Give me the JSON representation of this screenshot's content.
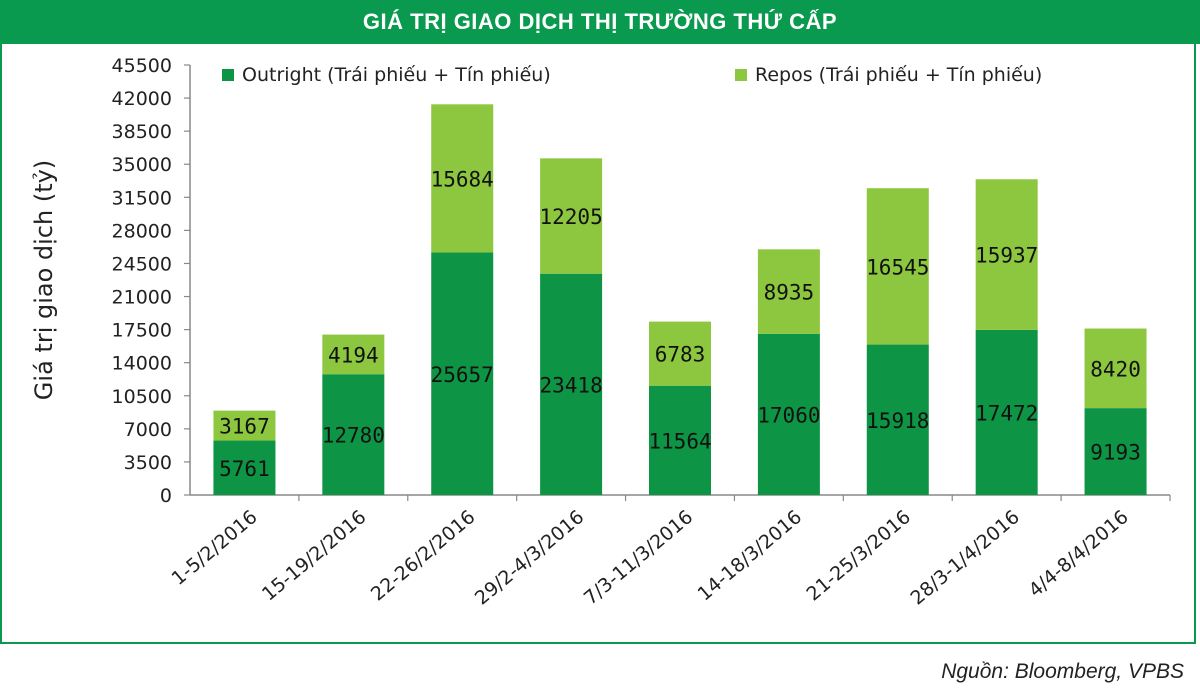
{
  "header": {
    "title": "GIÁ TRỊ GIAO DỊCH THỊ TRƯỜNG THỨ CẤP"
  },
  "footer": {
    "source": "Nguồn: Bloomberg, VPBS"
  },
  "colors": {
    "header_bg": "#0a9a4f",
    "outright": "#0d9444",
    "repos": "#8dc63f"
  },
  "chart_data": {
    "type": "bar",
    "stacked": true,
    "title": "GIÁ TRỊ GIAO DỊCH THỊ TRƯỜNG THỨ CẤP",
    "xlabel": "",
    "ylabel": "Giá trị giao dịch (tỷ)",
    "ylim": [
      0,
      45500
    ],
    "yticks": [
      0,
      3500,
      7000,
      10500,
      14000,
      17500,
      21000,
      24500,
      28000,
      31500,
      35000,
      38500,
      42000,
      45500
    ],
    "grid": false,
    "legend": "top",
    "categories": [
      "1-5/2/2016",
      "15-19/2/2016",
      "22-26/2/2016",
      "29/2-4/3/2016",
      "7/3-11/3/2016",
      "14-18/3/2016",
      "21-25/3/2016",
      "28/3-1/4/2016",
      "4/4-8/4/2016"
    ],
    "series": [
      {
        "name": "Outright (Trái phiếu + Tín phiếu)",
        "color": "#0d9444",
        "values": [
          5761,
          12780,
          25657,
          23418,
          11564,
          17060,
          15918,
          17472,
          9193
        ]
      },
      {
        "name": "Repos (Trái phiếu + Tín phiếu)",
        "color": "#8dc63f",
        "values": [
          3167,
          4194,
          15684,
          12205,
          6783,
          8935,
          16545,
          15937,
          8420
        ]
      }
    ]
  }
}
